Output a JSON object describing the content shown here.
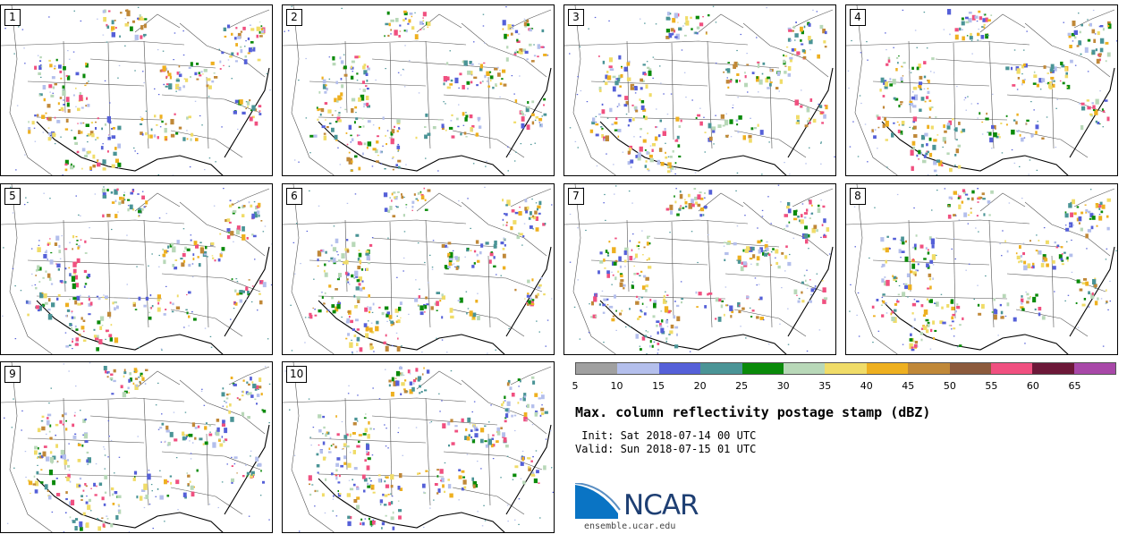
{
  "panels": [
    {
      "number": "1"
    },
    {
      "number": "2"
    },
    {
      "number": "3"
    },
    {
      "number": "4"
    },
    {
      "number": "5"
    },
    {
      "number": "6"
    },
    {
      "number": "7"
    },
    {
      "number": "8"
    },
    {
      "number": "9"
    },
    {
      "number": "10"
    }
  ],
  "colorbar": {
    "colors": [
      "#a0a0a0",
      "#b4bfec",
      "#5560d8",
      "#4a9496",
      "#0a8a0a",
      "#b8d8b8",
      "#f0dc68",
      "#eeb020",
      "#c08838",
      "#8c5a3c",
      "#f05080",
      "#6c1838",
      "#a848a8"
    ],
    "labels": [
      "5",
      "10",
      "15",
      "20",
      "25",
      "30",
      "35",
      "40",
      "45",
      "50",
      "55",
      "60",
      "65"
    ]
  },
  "title": "Max. column reflectivity postage stamp (dBZ)",
  "init_line": " Init: Sat 2018-07-14 00 UTC",
  "valid_line": "Valid: Sun 2018-07-15 01 UTC",
  "logo": {
    "text": "NCAR",
    "url": "ensemble.ucar.edu"
  }
}
